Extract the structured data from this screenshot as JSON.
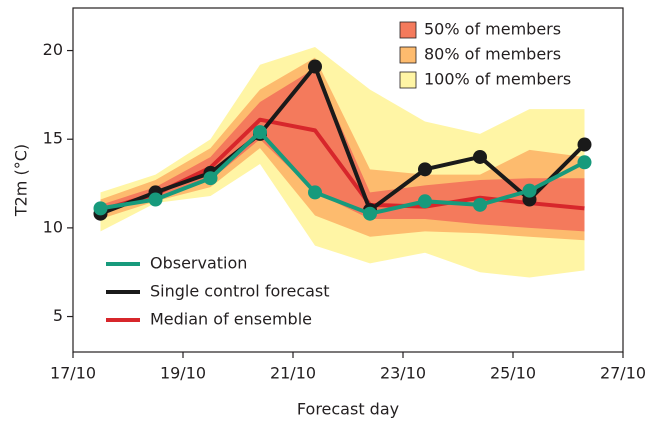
{
  "chart_data": {
    "type": "ensemble",
    "xlabel": "Forecast day",
    "ylabel": "T2m (°C)",
    "x": [
      17.5,
      18.5,
      19.5,
      20.4,
      21.4,
      22.4,
      23.4,
      24.4,
      25.3,
      26.3
    ],
    "xlim": [
      17,
      27
    ],
    "xticks": [
      {
        "value": 17,
        "label": "17/10"
      },
      {
        "value": 19,
        "label": "19/10"
      },
      {
        "value": 21,
        "label": "21/10"
      },
      {
        "value": 23,
        "label": "23/10"
      },
      {
        "value": 25,
        "label": "25/10"
      },
      {
        "value": 27,
        "label": "27/10"
      }
    ],
    "ylim": [
      3,
      22.4
    ],
    "yticks": [
      5,
      10,
      15,
      20
    ],
    "bands": [
      {
        "name": "100% of members",
        "color": "#fff5a5",
        "lower": [
          9.8,
          11.4,
          11.8,
          13.6,
          9.0,
          8.0,
          8.6,
          7.5,
          7.2,
          7.6
        ],
        "upper": [
          12.0,
          13.0,
          15.0,
          19.2,
          20.2,
          17.8,
          16.0,
          15.3,
          16.7,
          16.7
        ]
      },
      {
        "name": "80% of members",
        "color": "#fdbb6e",
        "lower": [
          10.5,
          11.5,
          12.3,
          14.5,
          10.7,
          9.5,
          9.8,
          9.7,
          9.5,
          9.3
        ],
        "upper": [
          11.6,
          12.7,
          14.5,
          17.8,
          19.6,
          13.3,
          13.0,
          13.0,
          14.4,
          14.0
        ]
      },
      {
        "name": "50% of members",
        "color": "#f47a5c",
        "lower": [
          10.8,
          11.7,
          12.7,
          15.0,
          12.0,
          10.5,
          10.5,
          10.2,
          10.0,
          9.8
        ],
        "upper": [
          11.3,
          12.3,
          14.0,
          17.1,
          19.0,
          12.0,
          12.4,
          12.7,
          12.8,
          12.8
        ]
      }
    ],
    "series": [
      {
        "name": "Median of ensemble",
        "color": "#d7262b",
        "markers": false,
        "values": [
          11.0,
          11.9,
          13.4,
          16.1,
          15.5,
          11.3,
          11.2,
          11.7,
          11.4,
          11.1
        ]
      },
      {
        "name": "Single control forecast",
        "color": "#1a1a1a",
        "markers": true,
        "values": [
          10.8,
          12.0,
          13.1,
          15.3,
          19.1,
          11.0,
          13.3,
          14.0,
          11.6,
          14.7
        ]
      },
      {
        "name": "Observation",
        "color": "#179a7c",
        "markers": true,
        "values": [
          11.1,
          11.6,
          12.8,
          15.4,
          12.0,
          10.8,
          11.5,
          11.3,
          12.1,
          13.7
        ]
      }
    ]
  }
}
